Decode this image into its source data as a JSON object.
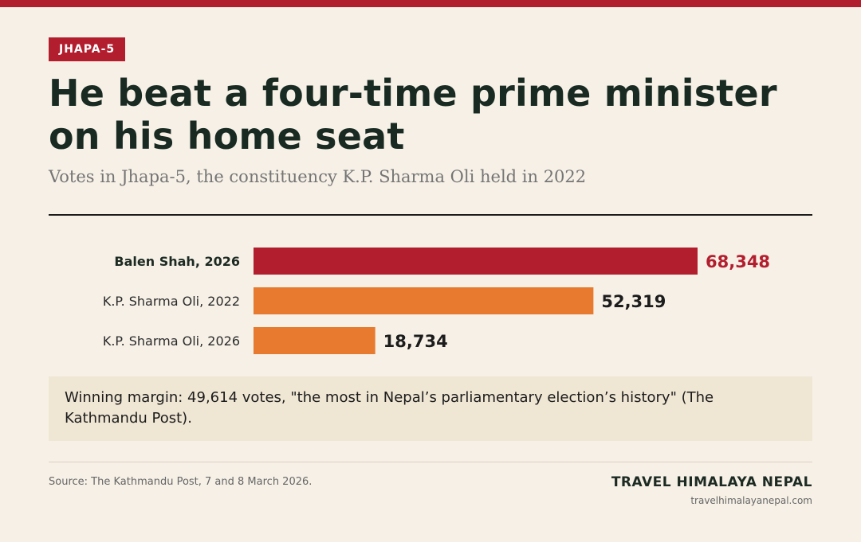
{
  "tag": "JHAPA-5",
  "title_line1": "He beat a four-time prime minister",
  "title_line2": "on his home seat",
  "subtitle": "Votes in Jhapa-5, the constituency K.P. Sharma Oli held in 2022",
  "callout": "Winning margin: 49,614 votes, \"the most in Nepal’s parliamentary election’s history\" (The Kathmandu Post).",
  "source": "Source: The Kathmandu Post, 7 and 8 March 2026.",
  "brand": "TRAVEL HIMALAYA NEPAL",
  "url": "travelhimalayanepal.com",
  "colors": {
    "accent_red": "#b31e2f",
    "orange": "#e77a2e",
    "background": "#f6f0e6",
    "callout_bg": "#efe6d4"
  },
  "chart_data": {
    "type": "bar",
    "orientation": "horizontal",
    "categories": [
      "Balen Shah, 2026",
      "K.P. Sharma Oli, 2022",
      "K.P. Sharma Oli, 2026"
    ],
    "values": [
      68348,
      52319,
      18734
    ],
    "value_labels": [
      "68,348",
      "52,319",
      "18,734"
    ],
    "bar_colors": [
      "#b31e2f",
      "#e77a2e",
      "#e77a2e"
    ],
    "highlight_index": 0,
    "xlabel": "",
    "ylabel": "",
    "grid": false,
    "legend": false
  }
}
